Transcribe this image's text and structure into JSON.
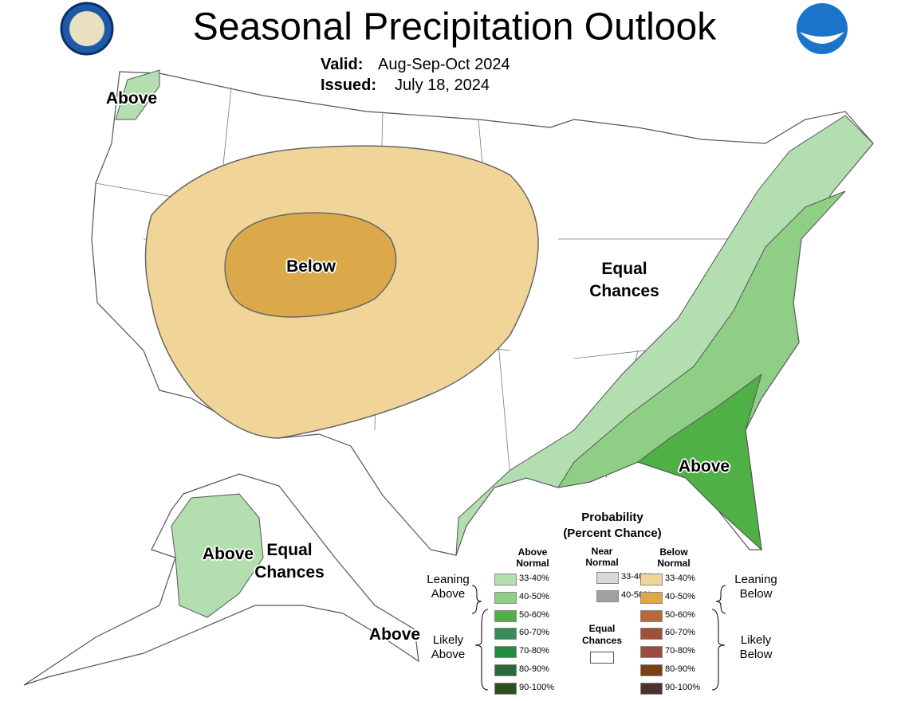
{
  "header": {
    "title": "Seasonal Precipitation Outlook",
    "valid_label": "Valid:",
    "valid": "Aug-Sep-Oct 2024",
    "issued_label": "Issued:",
    "issued": "July 18, 2024"
  },
  "map_labels": [
    "Above",
    "Below",
    "Equal Chances",
    "Above",
    "Above",
    "Equal Chances",
    "Above"
  ],
  "legend": {
    "title": "Probability (Percent Chance)",
    "columns": [
      {
        "heading": "Above Normal",
        "items": [
          {
            "label": "33-40%",
            "color": "#b3dfb0"
          },
          {
            "label": "40-50%",
            "color": "#8fce85"
          },
          {
            "label": "50-60%",
            "color": "#4fb046"
          },
          {
            "label": "60-70%",
            "color": "#3a8a5c"
          },
          {
            "label": "70-80%",
            "color": "#1f8f3f"
          },
          {
            "label": "80-90%",
            "color": "#2b6a3a"
          },
          {
            "label": "90-100%",
            "color": "#2a4f20"
          }
        ]
      },
      {
        "heading": "Near Normal",
        "items": [
          {
            "label": "33-40%",
            "color": "#d9d9d9"
          },
          {
            "label": "40-50%",
            "color": "#a0a0a0"
          }
        ]
      },
      {
        "heading": "Below Normal",
        "items": [
          {
            "label": "33-40%",
            "color": "#f0d498"
          },
          {
            "label": "40-50%",
            "color": "#dca94a"
          },
          {
            "label": "50-60%",
            "color": "#b8693a"
          },
          {
            "label": "60-70%",
            "color": "#a0503a"
          },
          {
            "label": "70-80%",
            "color": "#9a4a40"
          },
          {
            "label": "80-90%",
            "color": "#7a4010"
          },
          {
            "label": "90-100%",
            "color": "#4d3030"
          }
        ]
      }
    ],
    "groups": [
      "Leaning Above",
      "Likely Above",
      "Leaning Below",
      "Likely Below"
    ],
    "equal_chances": "Equal Chances"
  }
}
